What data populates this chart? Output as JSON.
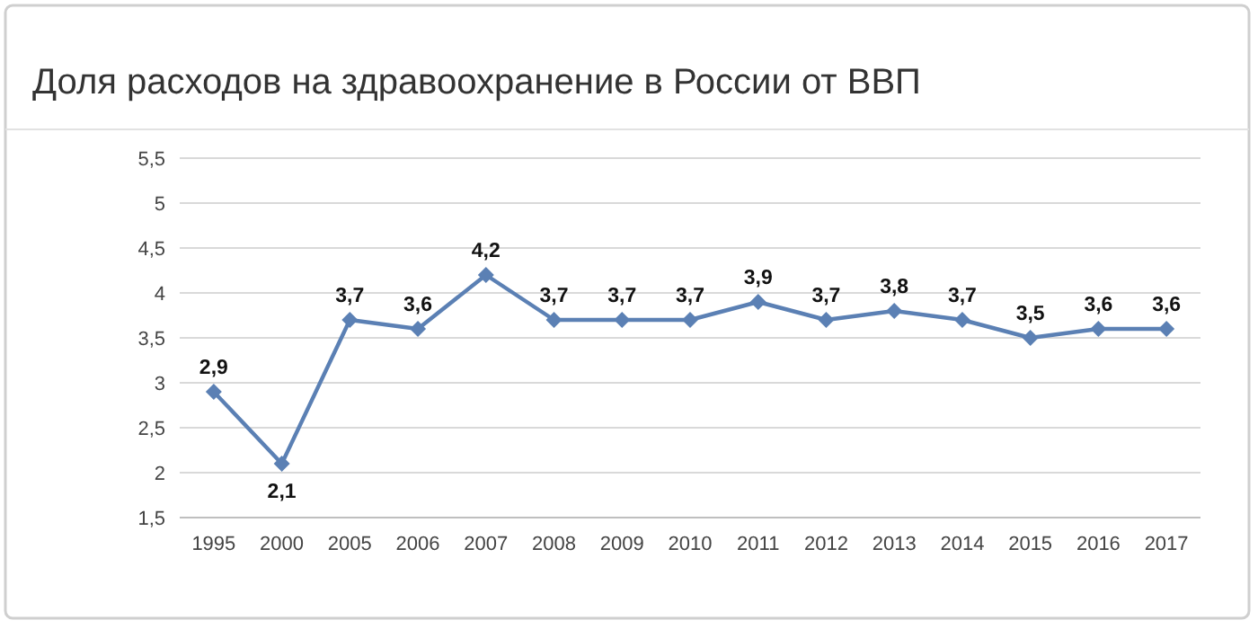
{
  "chart_data": {
    "type": "line",
    "title": "Доля расходов на здравоохранение в России от ВВП",
    "categories": [
      "1995",
      "2000",
      "2005",
      "2006",
      "2007",
      "2008",
      "2009",
      "2010",
      "2011",
      "2012",
      "2013",
      "2014",
      "2015",
      "2016",
      "2017"
    ],
    "series": [
      {
        "color": "#5b80b4",
        "values": [
          2.9,
          2.1,
          3.7,
          3.6,
          4.2,
          3.7,
          3.7,
          3.7,
          3.9,
          3.7,
          3.8,
          3.7,
          3.5,
          3.6,
          3.6
        ],
        "value_labels": [
          "2,9",
          "2,1",
          "3,7",
          "3,6",
          "4,2",
          "3,7",
          "3,7",
          "3,7",
          "3,9",
          "3,7",
          "3,8",
          "3,7",
          "3,5",
          "3,6",
          "3,6"
        ]
      }
    ],
    "ylim": [
      1.5,
      5.5
    ],
    "yticks": [
      {
        "value": 1.5,
        "label": "1,5"
      },
      2,
      {
        "value": 2.5,
        "label": "2,5"
      },
      3,
      {
        "value": 3.5,
        "label": "3,5"
      },
      4,
      {
        "value": 4.5,
        "label": "4,5"
      },
      5,
      {
        "value": 5.5,
        "label": "5,5"
      }
    ],
    "grid": "y",
    "marker": "diamond",
    "line_style": "solid"
  }
}
